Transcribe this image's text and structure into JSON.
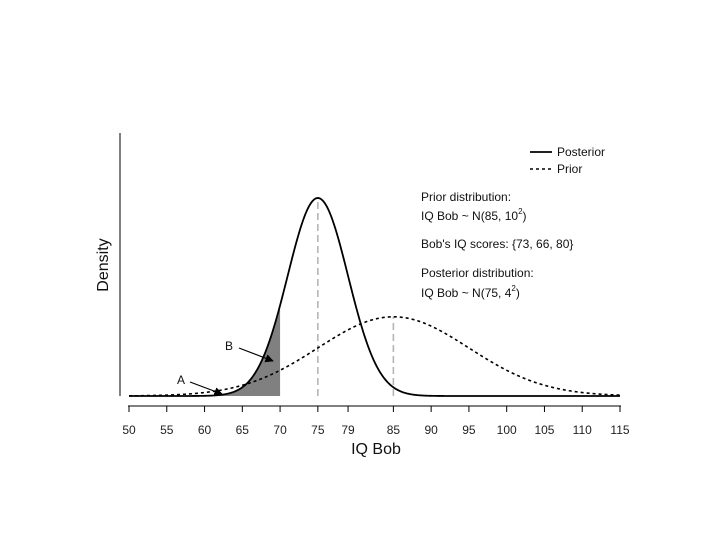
{
  "chart_data": {
    "type": "line",
    "xlabel": "IQ Bob",
    "ylabel": "Density",
    "xlim": [
      50,
      115
    ],
    "xticks": [
      50,
      55,
      60,
      65,
      70,
      75,
      79,
      85,
      90,
      95,
      100,
      105,
      110,
      115
    ],
    "grid": false,
    "legend_position": "top-right",
    "series": [
      {
        "name": "Posterior",
        "style": "solid",
        "color": "#000000",
        "distribution": "normal",
        "mean": 75,
        "sd": 4
      },
      {
        "name": "Prior",
        "style": "dotted",
        "color": "#000000",
        "distribution": "normal",
        "mean": 85,
        "sd": 10
      }
    ],
    "mean_markers": [
      75,
      85
    ],
    "shaded_region": {
      "from": 50,
      "to": 70,
      "color": "#808080"
    },
    "arrows": [
      {
        "label": "A",
        "target_x": 62
      },
      {
        "label": "B",
        "target_x": 69
      }
    ],
    "annotations": {
      "prior_heading": "Prior distribution:",
      "prior_formula": "IQ Bob ~ N(85, 10",
      "prior_exp": "2",
      "scores": "Bob's IQ scores: {73, 66, 80}",
      "posterior_heading": "Posterior distribution:",
      "posterior_formula": "IQ Bob ~ N(75, 4",
      "posterior_exp": "2"
    }
  }
}
